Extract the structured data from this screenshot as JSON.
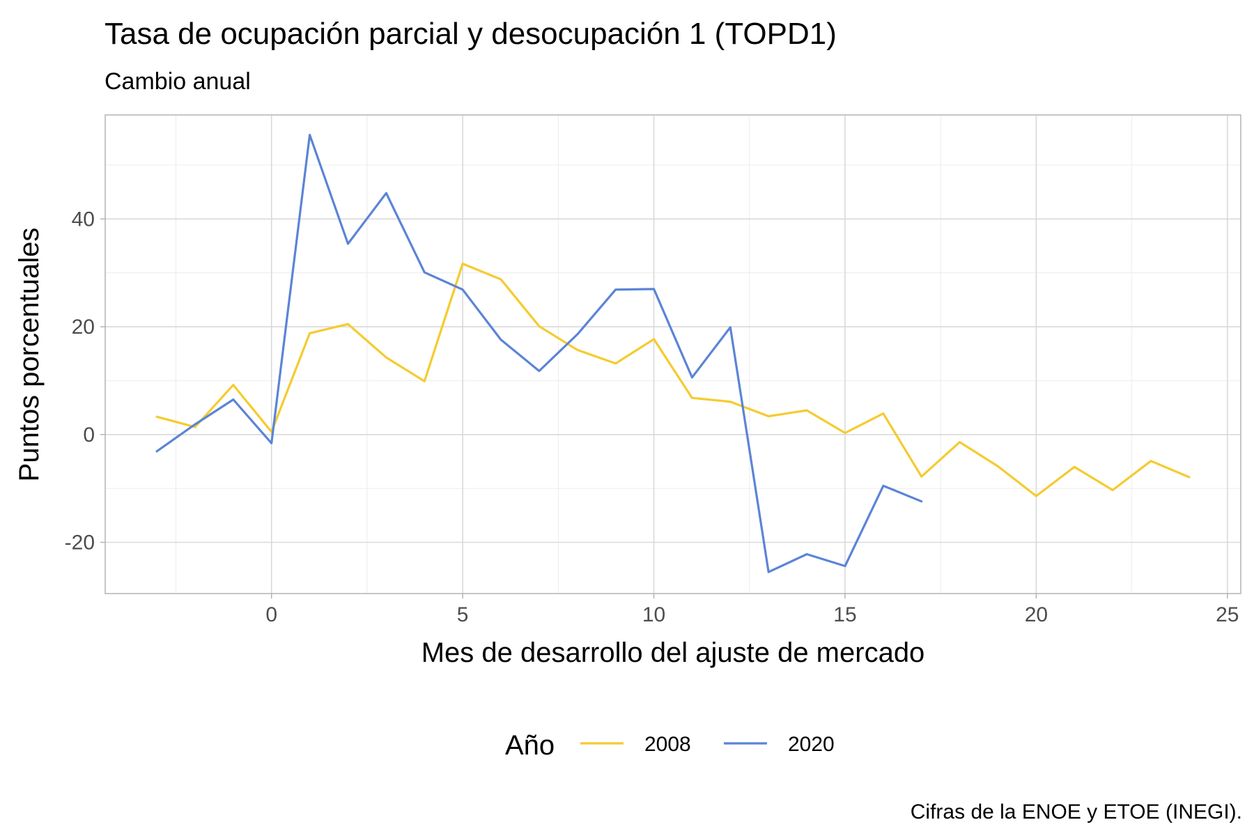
{
  "chart_data": {
    "type": "line",
    "title": "Tasa de ocupación parcial y desocupación 1 (TOPD1)",
    "subtitle": "Cambio anual",
    "xlabel": "Mes de desarrollo del ajuste de mercado",
    "ylabel": "Puntos porcentuales",
    "caption": "Cifras de la ENOE y ETOE (INEGI).",
    "legend_title": "Año",
    "legend_position": "bottom",
    "grid": true,
    "xlim": [
      -4.35,
      25.35
    ],
    "ylim": [
      -29.5,
      59.3
    ],
    "x_ticks": [
      0,
      5,
      10,
      15,
      20,
      25
    ],
    "y_ticks": [
      -20,
      0,
      20,
      40
    ],
    "x_tick_labels": [
      "0",
      "5",
      "10",
      "15",
      "20",
      "25"
    ],
    "y_tick_labels": [
      "-20",
      "0",
      "20",
      "40"
    ],
    "series": [
      {
        "name": "2008",
        "color": "#F5CB2F",
        "x": [
          -3,
          -2,
          -1,
          0,
          1,
          2,
          3,
          4,
          5,
          6,
          7,
          8,
          9,
          10,
          11,
          12,
          13,
          14,
          15,
          16,
          17,
          18,
          19,
          20,
          21,
          22,
          23,
          24
        ],
        "y": [
          3.3,
          1.4,
          9.2,
          0.5,
          18.8,
          20.5,
          14.3,
          9.9,
          31.7,
          28.8,
          20.1,
          15.7,
          13.2,
          17.7,
          6.8,
          6.1,
          3.4,
          4.5,
          0.3,
          3.9,
          -7.8,
          -1.4,
          -5.9,
          -11.4,
          -6.0,
          -10.3,
          -4.9,
          -7.9
        ]
      },
      {
        "name": "2020",
        "color": "#5B84D6",
        "x": [
          -3,
          -2,
          -1,
          0,
          1,
          2,
          3,
          4,
          5,
          6,
          7,
          8,
          9,
          10,
          11,
          12,
          13,
          14,
          15,
          16,
          17
        ],
        "y": [
          -3.1,
          1.9,
          6.5,
          -1.6,
          55.6,
          35.4,
          44.8,
          30.1,
          26.9,
          17.6,
          11.8,
          18.6,
          26.9,
          27.0,
          10.6,
          19.9,
          -25.5,
          -22.2,
          -24.4,
          -9.5,
          -12.4
        ]
      }
    ]
  }
}
